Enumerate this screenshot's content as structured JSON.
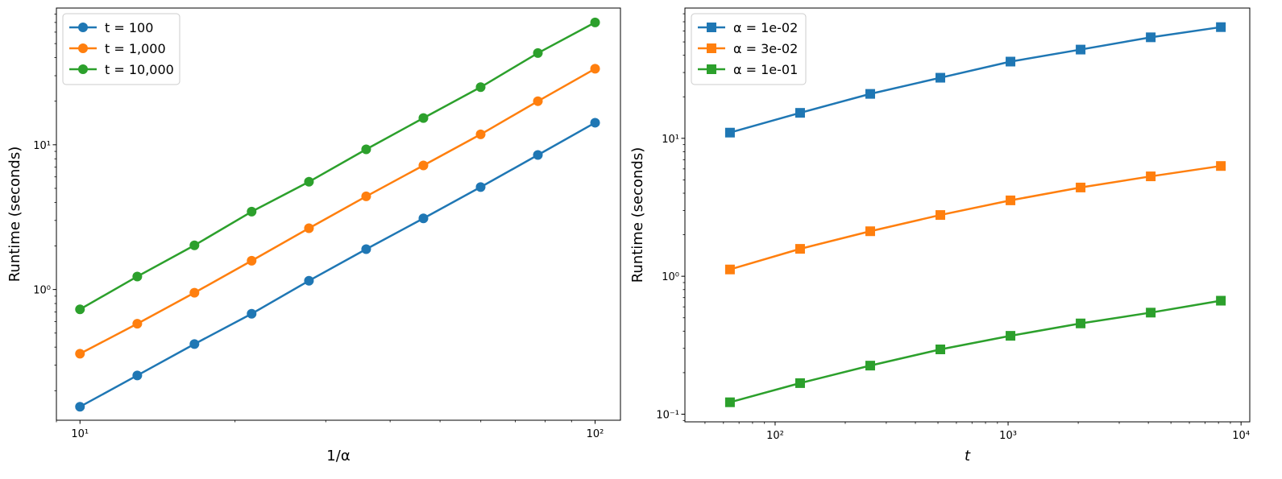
{
  "colors": {
    "blue": "#1f77b4",
    "orange": "#ff7f0e",
    "green": "#2ca02c",
    "axis": "#000000",
    "legend_border": "#cccccc"
  },
  "chart_data": [
    {
      "type": "line",
      "xscale": "log",
      "yscale": "log",
      "xlabel": "1/α",
      "ylabel": "Runtime (seconds)",
      "xlim": [
        9.0,
        112
      ],
      "ylim": [
        0.125,
        88
      ],
      "grid": false,
      "marker": "circle",
      "legend_position": "top-left",
      "x": [
        10,
        12.92,
        16.68,
        21.54,
        27.83,
        35.94,
        46.42,
        59.95,
        77.43,
        100
      ],
      "series": [
        {
          "name": "t = 100",
          "color": "blue",
          "values": [
            0.155,
            0.255,
            0.42,
            0.68,
            1.15,
            1.9,
            3.1,
            5.1,
            8.5,
            14.2
          ]
        },
        {
          "name": "t = 1,000",
          "color": "orange",
          "values": [
            0.36,
            0.58,
            0.95,
            1.58,
            2.65,
            4.4,
            7.2,
            11.8,
            20.0,
            33.5
          ]
        },
        {
          "name": "t = 10,000",
          "color": "green",
          "values": [
            0.73,
            1.23,
            2.02,
            3.45,
            5.55,
            9.3,
            15.3,
            25.0,
            43.0,
            70.0
          ]
        }
      ],
      "yticks": [
        {
          "value": 1,
          "label": "10⁰"
        },
        {
          "value": 10,
          "label": "10¹"
        }
      ],
      "xticks": [
        {
          "value": 10,
          "label": "10¹"
        },
        {
          "value": 100,
          "label": "10²"
        }
      ]
    },
    {
      "type": "line",
      "xscale": "log",
      "yscale": "log",
      "xlabel": "t",
      "ylabel": "Runtime (seconds)",
      "xlim": [
        41,
        10900
      ],
      "ylim": [
        0.088,
        88
      ],
      "grid": false,
      "marker": "square",
      "legend_position": "top-left",
      "x": [
        64,
        128,
        256,
        512,
        1024,
        2048,
        4096,
        8192
      ],
      "series": [
        {
          "name": "α = 1e-02",
          "color": "blue",
          "values": [
            11.0,
            15.3,
            21.0,
            27.5,
            36.0,
            44.0,
            54.0,
            64.0
          ]
        },
        {
          "name": "α = 3e-02",
          "color": "orange",
          "values": [
            1.12,
            1.58,
            2.12,
            2.78,
            3.55,
            4.4,
            5.3,
            6.3
          ]
        },
        {
          "name": "α = 1e-01",
          "color": "green",
          "values": [
            0.122,
            0.168,
            0.225,
            0.295,
            0.37,
            0.455,
            0.545,
            0.665
          ]
        }
      ],
      "yticks": [
        {
          "value": 0.1,
          "label": "10⁻¹"
        },
        {
          "value": 1,
          "label": "10⁰"
        },
        {
          "value": 10,
          "label": "10¹"
        }
      ],
      "xticks": [
        {
          "value": 100,
          "label": "10²"
        },
        {
          "value": 1000,
          "label": "10³"
        },
        {
          "value": 10000,
          "label": "10⁴"
        }
      ]
    }
  ]
}
